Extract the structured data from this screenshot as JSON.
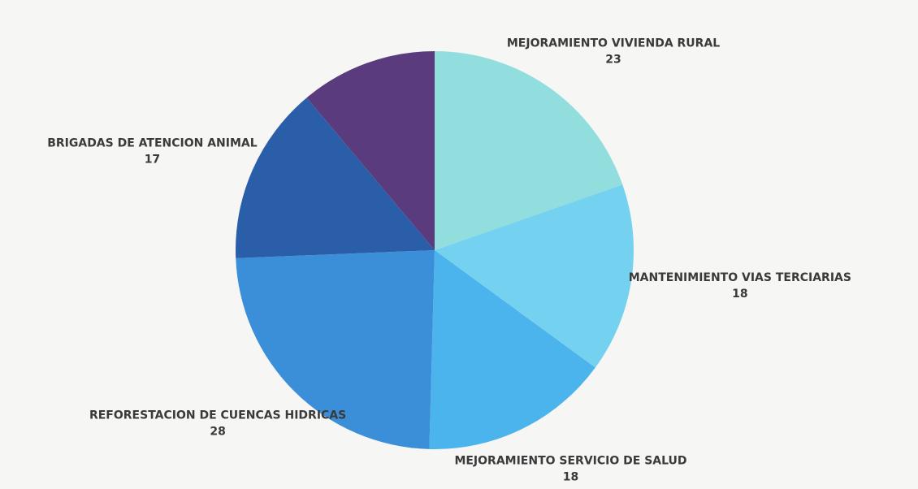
{
  "chart_data": {
    "type": "pie",
    "categories": [
      "MEJORAMIENTO VIVIENDA RURAL",
      "MANTENIMIENTO VIAS TERCIARIAS",
      "MEJORAMIENTO SERVICIO DE SALUD",
      "REFORESTACION DE CUENCAS HIDRICAS",
      "BRIGADAS DE ATENCION ANIMAL",
      null
    ],
    "values": [
      23,
      18,
      18,
      28,
      17,
      13
    ],
    "colors": [
      "#92dede",
      "#74d2f0",
      "#4cb4ec",
      "#3b8fd9",
      "#2b5ea9",
      "#5a3b7d"
    ]
  }
}
